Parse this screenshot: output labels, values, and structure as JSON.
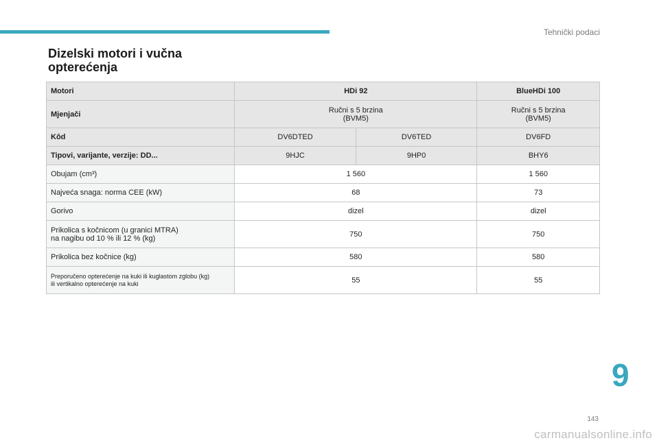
{
  "section_header": "Tehnički podaci",
  "title_line1": "Dizelski motori i vučna",
  "title_line2": "opterećenja",
  "table": {
    "motori_label": "Motori",
    "engine1": "HDi 92",
    "engine2": "BlueHDi 100",
    "mjenjaci_label": "Mjenjači",
    "mjenjac1_line1": "Ručni s 5 brzina",
    "mjenjac1_line2": "(BVM5)",
    "mjenjac2_line1": "Ručni s 5 brzina",
    "mjenjac2_line2": "(BVM5)",
    "kod_label": "Kôd",
    "kod": [
      "DV6DTED",
      "DV6TED",
      "DV6FD"
    ],
    "tipovi_label": "Tipovi, varijante, verzije: DD...",
    "tipovi": [
      "9HJC",
      "9HP0",
      "BHY6"
    ],
    "obujam_label": "Obujam (cm³)",
    "obujam": [
      "1 560",
      "1 560"
    ],
    "snaga_label": "Najveća snaga: norma CEE (kW)",
    "snaga": [
      "68",
      "73"
    ],
    "gorivo_label": "Gorivo",
    "gorivo": [
      "dizel",
      "dizel"
    ],
    "prikolica_k_line1": "Prikolica s kočnicom (u granici MTRA)",
    "prikolica_k_line2": "na nagibu od 10 % ili 12 % (kg)",
    "prikolica_k": [
      "750",
      "750"
    ],
    "prikolica_bez_label": "Prikolica bez kočnice (kg)",
    "prikolica_bez": [
      "580",
      "580"
    ],
    "preporuceno_line1": "Preporučeno opterećenje na kuki ili kuglastom zglobu (kg)",
    "preporuceno_line2": "ili vertikalno opterećenje na kuki",
    "preporuceno": [
      "55",
      "55"
    ]
  },
  "chapter_number": "9",
  "page_number": "143",
  "watermark": "carmanualsonline.info",
  "colors": {
    "accent": "#3aa7bf",
    "header_bg": "#e6e6e6",
    "label_bg": "#f4f5f5",
    "border": "#c6c6c6"
  }
}
